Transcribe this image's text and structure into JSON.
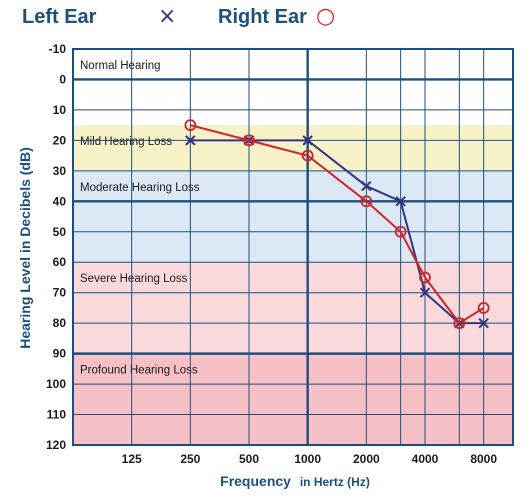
{
  "chart_data": {
    "type": "line",
    "title": "",
    "xlabel_main": "Frequency",
    "xlabel_sub": "in Hertz (Hz)",
    "ylabel": "Hearing Level in Decibels (dB)",
    "x_scale": "log2",
    "x_ticks": [
      {
        "value": 125,
        "label": "125"
      },
      {
        "value": 250,
        "label": "250"
      },
      {
        "value": 500,
        "label": "500"
      },
      {
        "value": 1000,
        "label": "1000"
      },
      {
        "value": 2000,
        "label": "2000"
      },
      {
        "value": 4000,
        "label": "4000"
      },
      {
        "value": 8000,
        "label": "8000"
      }
    ],
    "x_extra_gridlines": [
      3000,
      6000
    ],
    "xlim": [
      62.5,
      11314
    ],
    "ylim": [
      -10,
      120
    ],
    "y_inverted": true,
    "y_ticks": [
      -10,
      0,
      10,
      20,
      30,
      40,
      50,
      60,
      70,
      80,
      90,
      100,
      110,
      120
    ],
    "grid": true,
    "bands": [
      {
        "label": "Normal Hearing",
        "from": -10,
        "to": 15,
        "color": "#ffffff"
      },
      {
        "label": "Mild Hearing Loss",
        "from": 15,
        "to": 30,
        "color": "#f7f1c8"
      },
      {
        "label": "Moderate Hearing Loss",
        "from": 30,
        "to": 60,
        "color": "#dde8f5"
      },
      {
        "label": "Severe Hearing Loss",
        "from": 60,
        "to": 90,
        "color": "#fad9dc"
      },
      {
        "label": "Profound Hearing Loss",
        "from": 90,
        "to": 120,
        "color": "#f5c0c6"
      }
    ],
    "series": [
      {
        "name": "Left Ear",
        "marker": "x",
        "color": "#34347f",
        "x": [
          250,
          500,
          1000,
          2000,
          3000,
          4000,
          6000,
          8000
        ],
        "y": [
          20,
          20,
          20,
          35,
          40,
          70,
          80,
          80
        ]
      },
      {
        "name": "Right Ear",
        "marker": "o",
        "color": "#d1232a",
        "x": [
          250,
          500,
          1000,
          2000,
          3000,
          4000,
          6000,
          8000
        ],
        "y": [
          15,
          20,
          25,
          40,
          50,
          65,
          80,
          75
        ]
      }
    ],
    "legend": {
      "position": "top-left",
      "items": [
        {
          "label": "Left Ear",
          "symbol": "×"
        },
        {
          "label": "Right Ear",
          "symbol": "○"
        }
      ]
    }
  }
}
